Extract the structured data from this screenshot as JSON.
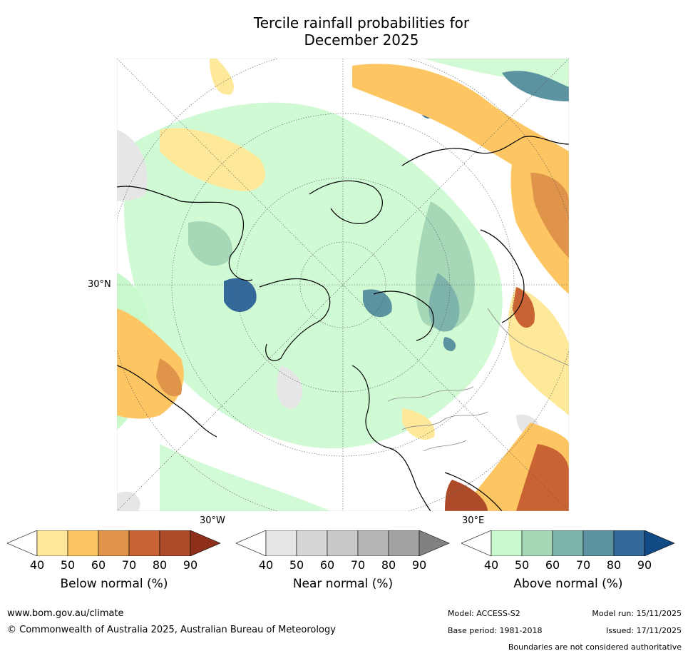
{
  "title": {
    "line1": "Tercile rainfall probabilities for",
    "line2": "December 2025"
  },
  "map": {
    "lat_label": "30°N",
    "lon_label_left": "30°W",
    "lon_label_right": "30°E"
  },
  "colorbars": [
    {
      "title": "Below normal (%)",
      "ticks": [
        "40",
        "50",
        "60",
        "70",
        "80",
        "90"
      ],
      "colors": [
        "#ffffff",
        "#fee99a",
        "#fdc662",
        "#e0944a",
        "#c96334",
        "#ad4a2a",
        "#8e2f1b"
      ]
    },
    {
      "title": "Near normal (%)",
      "ticks": [
        "40",
        "50",
        "60",
        "70",
        "80",
        "90"
      ],
      "colors": [
        "#ffffff",
        "#e6e6e6",
        "#d6d6d6",
        "#c8c8c8",
        "#b6b6b6",
        "#a2a2a2",
        "#818181"
      ]
    },
    {
      "title": "Above normal (%)",
      "ticks": [
        "40",
        "50",
        "60",
        "70",
        "80",
        "90"
      ],
      "colors": [
        "#ffffff",
        "#c8f9cc",
        "#a6d8b8",
        "#7fb4ac",
        "#5b93a1",
        "#336a9a",
        "#124a85"
      ]
    }
  ],
  "footer": {
    "website": "www.bom.gov.au/climate",
    "copyright": "© Commonwealth of Australia 2025, Australian Bureau of Meteorology",
    "model": "Model: ACCESS-S2",
    "model_run": "Model run: 15/11/2025",
    "base_period": "Base period: 1981-2018",
    "issued": "Issued: 17/11/2025",
    "disclaimer": "Boundaries are not considered authoritative"
  }
}
